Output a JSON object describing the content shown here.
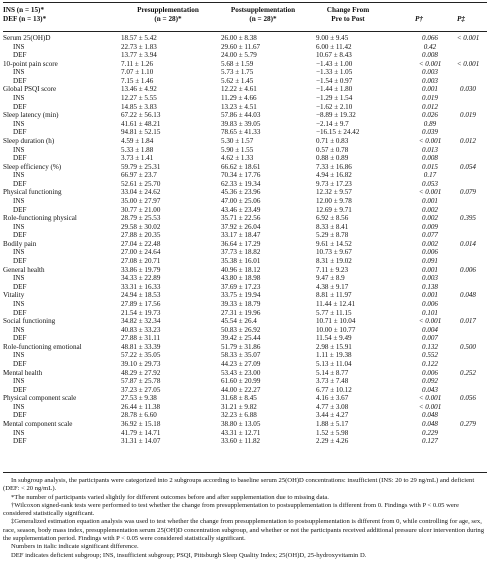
{
  "header": {
    "group_line1": "INS (n = 15)*",
    "group_line2": "DEF (n = 13)*",
    "col_pre_line1": "Presupplementation",
    "col_pre_line2": "(n = 28)*",
    "col_post_line1": "Postsupplementation",
    "col_post_line2": "(n = 28)*",
    "col_change_line1": "Change From",
    "col_change_line2": "Pre to Post",
    "col_p": "P†",
    "col_pstar": "P‡"
  },
  "rows": [
    {
      "label": "Serum 25(OH)D",
      "sub": false,
      "pre": "18.57 ± 5.42",
      "post": "26.00 ± 8.38",
      "change": "9.00 ± 9.45",
      "p": "0.066",
      "pstar": "< 0.001"
    },
    {
      "label": "INS",
      "sub": true,
      "pre": "22.73 ± 1.83",
      "post": "29.60 ± 11.67",
      "change": "6.00 ± 11.42",
      "p": "0.42",
      "pstar": ""
    },
    {
      "label": "DEF",
      "sub": true,
      "pre": "13.77 ± 3.94",
      "post": "24.00 ± 5.79",
      "change": "10.67 ± 8.43",
      "p": "0.008",
      "pstar": ""
    },
    {
      "label": "10-point pain score",
      "sub": false,
      "pre": "7.11 ± 1.26",
      "post": "5.68 ± 1.59",
      "change": "−1.43 ± 1.00",
      "p": "< 0.001",
      "pstar": "< 0.001"
    },
    {
      "label": "INS",
      "sub": true,
      "pre": "7.07 ± 1.10",
      "post": "5.73 ± 1.75",
      "change": "−1.33 ± 1.05",
      "p": "0.003",
      "pstar": ""
    },
    {
      "label": "DEF",
      "sub": true,
      "pre": "7.15 ± 1.46",
      "post": "5.62 ± 1.45",
      "change": "−1.54 ± 0.97",
      "p": "0.003",
      "pstar": ""
    },
    {
      "label": "Global PSQI score",
      "sub": false,
      "pre": "13.46 ± 4.92",
      "post": "12.22 ± 4.61",
      "change": "−1.44 ± 1.80",
      "p": "0.001",
      "pstar": "0.030"
    },
    {
      "label": "INS",
      "sub": true,
      "pre": "12.27 ± 5.55",
      "post": "11.29 ± 4.66",
      "change": "−1.29 ± 1.54",
      "p": "0.019",
      "pstar": ""
    },
    {
      "label": "DEF",
      "sub": true,
      "pre": "14.85 ± 3.83",
      "post": "13.23 ± 4.51",
      "change": "−1.62 ± 2.10",
      "p": "0.012",
      "pstar": ""
    },
    {
      "label": "Sleep latency (min)",
      "sub": false,
      "pre": "67.22 ± 56.13",
      "post": "57.86 ± 44.03",
      "change": "−8.89 ± 19.32",
      "p": "0.026",
      "pstar": "0.019"
    },
    {
      "label": "INS",
      "sub": true,
      "pre": "41.61 ± 48.21",
      "post": "39.83 ± 39.05",
      "change": "−2.14 ± 9.7",
      "p": "0.89",
      "pstar": ""
    },
    {
      "label": "DEF",
      "sub": true,
      "pre": "94.81 ± 52.15",
      "post": "78.65 ± 41.33",
      "change": "−16.15 ± 24.42",
      "p": "0.039",
      "pstar": ""
    },
    {
      "label": "Sleep duration (h)",
      "sub": false,
      "pre": "4.59 ± 1.84",
      "post": "5.30 ± 1.57",
      "change": "0.71 ± 0.83",
      "p": "< 0.001",
      "pstar": "0.012"
    },
    {
      "label": "INS",
      "sub": true,
      "pre": "5.33 ± 1.88",
      "post": "5.90 ± 1.55",
      "change": "0.57 ± 0.78",
      "p": "0.013",
      "pstar": ""
    },
    {
      "label": "DEF",
      "sub": true,
      "pre": "3.73 ± 1.41",
      "post": "4.62 ± 1.33",
      "change": "0.88 ± 0.89",
      "p": "0.008",
      "pstar": ""
    },
    {
      "label": "Sleep efficiency (%)",
      "sub": false,
      "pre": "59.79 ± 25.31",
      "post": "66.62 ± 18.61",
      "change": "7.33 ± 16.86",
      "p": "0.015",
      "pstar": "0.054"
    },
    {
      "label": "INS",
      "sub": true,
      "pre": "66.97 ± 23.7",
      "post": "70.34 ± 17.76",
      "change": "4.94 ± 16.82",
      "p": "0.17",
      "pstar": ""
    },
    {
      "label": "DEF",
      "sub": true,
      "pre": "52.61 ± 25.70",
      "post": "62.33 ± 19.34",
      "change": "9.73 ± 17.23",
      "p": "0.053",
      "pstar": ""
    },
    {
      "label": "Physical functioning",
      "sub": false,
      "pre": "33.04 ± 24.62",
      "post": "45.36 ± 23.96",
      "change": "12.32 ± 9.57",
      "p": "< 0.001",
      "pstar": "0.079"
    },
    {
      "label": "INS",
      "sub": true,
      "pre": "35.00 ± 27.97",
      "post": "47.00 ± 25.06",
      "change": "12.00 ± 9.78",
      "p": "0.001",
      "pstar": ""
    },
    {
      "label": "DEF",
      "sub": true,
      "pre": "30.77 ± 21.00",
      "post": "43.46 ± 23.49",
      "change": "12.69 ± 9.71",
      "p": "0.002",
      "pstar": ""
    },
    {
      "label": "Role-functioning physical",
      "sub": false,
      "pre": "28.79 ± 25.53",
      "post": "35.71 ± 22.56",
      "change": "6.92 ± 8.56",
      "p": "0.002",
      "pstar": "0.395"
    },
    {
      "label": "INS",
      "sub": true,
      "pre": "29.58 ± 30.02",
      "post": "37.92 ± 26.04",
      "change": "8.33 ± 8.41",
      "p": "0.009",
      "pstar": ""
    },
    {
      "label": "DEF",
      "sub": true,
      "pre": "27.88 ± 20.35",
      "post": "33.17 ± 18.47",
      "change": "5.29 ± 8.78",
      "p": "0.077",
      "pstar": ""
    },
    {
      "label": "Bodily pain",
      "sub": false,
      "pre": "27.04 ± 22.48",
      "post": "36.64 ± 17.29",
      "change": "9.61 ± 14.52",
      "p": "0.002",
      "pstar": "0.014"
    },
    {
      "label": "INS",
      "sub": true,
      "pre": "27.00 ± 24.64",
      "post": "37.73 ± 18.82",
      "change": "10.73 ± 9.67",
      "p": "0.006",
      "pstar": ""
    },
    {
      "label": "DEF",
      "sub": true,
      "pre": "27.08 ± 20.71",
      "post": "35.38 ± 16.01",
      "change": "8.31 ± 19.02",
      "p": "0.091",
      "pstar": ""
    },
    {
      "label": "General health",
      "sub": false,
      "pre": "33.86 ± 19.79",
      "post": "40.96 ± 18.12",
      "change": "7.11 ± 9.23",
      "p": "0.001",
      "pstar": "0.006"
    },
    {
      "label": "INS",
      "sub": true,
      "pre": "34.33 ± 22.89",
      "post": "43.80 ± 18.98",
      "change": "9.47 ± 8.9",
      "p": "0.003",
      "pstar": ""
    },
    {
      "label": "DEF",
      "sub": true,
      "pre": "33.31 ± 16.33",
      "post": "37.69 ± 17.23",
      "change": "4.38 ± 9.17",
      "p": "0.138",
      "pstar": ""
    },
    {
      "label": "Vitality",
      "sub": false,
      "pre": "24.94 ± 18.53",
      "post": "33.75 ± 19.94",
      "change": "8.81 ± 11.97",
      "p": "0.001",
      "pstar": "0.048"
    },
    {
      "label": "INS",
      "sub": true,
      "pre": "27.89 ± 17.56",
      "post": "39.33 ± 18.79",
      "change": "11.44 ± 12.41",
      "p": "0.006",
      "pstar": ""
    },
    {
      "label": "DEF",
      "sub": true,
      "pre": "21.54 ± 19.73",
      "post": "27.31 ± 19.96",
      "change": "5.77 ± 11.15",
      "p": "0.101",
      "pstar": ""
    },
    {
      "label": "Social functioning",
      "sub": false,
      "pre": "34.82 ± 32.34",
      "post": "45.54 ± 26.4",
      "change": "10.71 ± 10.04",
      "p": "< 0.001",
      "pstar": "0.017"
    },
    {
      "label": "INS",
      "sub": true,
      "pre": "40.83 ± 33.23",
      "post": "50.83 ± 26.92",
      "change": "10.00 ± 10.77",
      "p": "0.004",
      "pstar": ""
    },
    {
      "label": "DEF",
      "sub": true,
      "pre": "27.88 ± 31.11",
      "post": "39.42 ± 25.44",
      "change": "11.54 ± 9.49",
      "p": "0.007",
      "pstar": ""
    },
    {
      "label": "Role-functioning emotional",
      "sub": false,
      "pre": "48.81 ± 33.39",
      "post": "51.79 ± 31.86",
      "change": "2.98 ± 15.91",
      "p": "0.132",
      "pstar": "0.500"
    },
    {
      "label": "INS",
      "sub": true,
      "pre": "57.22 ± 35.05",
      "post": "58.33 ± 35.07",
      "change": "1.11 ± 19.38",
      "p": "0.552",
      "pstar": ""
    },
    {
      "label": "DEF",
      "sub": true,
      "pre": "39.10 ± 29.73",
      "post": "44.23 ± 27.09",
      "change": "5.13 ± 11.04",
      "p": "0.122",
      "pstar": ""
    },
    {
      "label": "Mental health",
      "sub": false,
      "pre": "48.29 ± 27.92",
      "post": "53.43 ± 23.00",
      "change": "5.14 ± 8.77",
      "p": "0.006",
      "pstar": "0.252"
    },
    {
      "label": "INS",
      "sub": true,
      "pre": "57.87 ± 25.78",
      "post": "61.60 ± 20.99",
      "change": "3.73 ± 7.48",
      "p": "0.092",
      "pstar": ""
    },
    {
      "label": "DEF",
      "sub": true,
      "pre": "37.23 ± 27.05",
      "post": "44.00 ± 22.27",
      "change": "6.77 ± 10.12",
      "p": "0.043",
      "pstar": ""
    },
    {
      "label": "Physical component scale",
      "sub": false,
      "pre": "27.53 ± 9.38",
      "post": "31.68 ± 8.45",
      "change": "4.16 ± 3.67",
      "p": "< 0.001",
      "pstar": "0.056"
    },
    {
      "label": "INS",
      "sub": true,
      "pre": "26.44 ± 11.38",
      "post": "31.21 ± 9.82",
      "change": "4.77 ± 3.08",
      "p": "< 0.001",
      "pstar": ""
    },
    {
      "label": "DEF",
      "sub": true,
      "pre": "28.78 ± 6.60",
      "post": "32.23 ± 6.88",
      "change": "3.44 ± 4.27",
      "p": "0.048",
      "pstar": ""
    },
    {
      "label": "Mental component scale",
      "sub": false,
      "pre": "36.92 ± 15.18",
      "post": "38.80 ± 13.05",
      "change": "1.88 ± 5.17",
      "p": "0.048",
      "pstar": "0.279"
    },
    {
      "label": "INS",
      "sub": true,
      "pre": "41.79 ± 14.71",
      "post": "43.31 ± 12.71",
      "change": "1.52 ± 5.98",
      "p": "0.229",
      "pstar": ""
    },
    {
      "label": "DEF",
      "sub": true,
      "pre": "31.31 ± 14.07",
      "post": "33.60 ± 11.82",
      "change": "2.29 ± 4.26",
      "p": "0.127",
      "pstar": ""
    }
  ],
  "footnotes": [
    "In subgroup analysis, the participants were categorized into 2 subgroups according to baseline serum 25(OH)D concentrations: insufficient (INS: 20 to 29 ng/mL) and deficient (DEF: < 20 ng/mL).",
    "*The number of participants varied slightly for different outcomes before and after supplementation due to missing data.",
    "†Wilcoxon signed-rank tests were performed to test whether the change from presupplementation to postsupplementation is different from 0. Findings with P < 0.05 were considered statistically significant.",
    "‡Generalized estimation equation analysis was used to test whether the change from presupplementation to postsupplementation is different from 0, while controlling for age, sex, race, season, body mass index, presupplementation serum 25(OH)D concentration subgroup, and whether or not the participants received additional pressure ulcer intervention during the supplementation period. Findings with P < 0.05 were considered statistically significant.",
    "Numbers in italic indicate significant difference.",
    "DEF indicates deficient subgroup; INS, insufficient subgroup; PSQI, Pittsburgh Sleep Quality Index; 25(OH)D, 25-hydroxyvitamin D."
  ]
}
